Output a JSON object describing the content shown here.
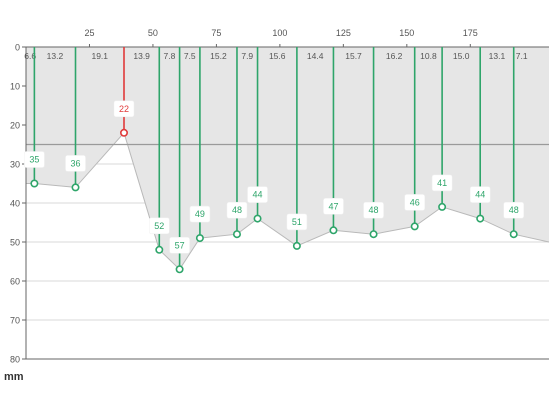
{
  "unit": "mm",
  "colors": {
    "ok": "#2ea56a",
    "alert": "#e03a3a",
    "fill": "#e6e6e6",
    "outline": "#b9b9b9",
    "grid": "#d9d9d9",
    "axis": "#666666",
    "threshold": "#9a9a9a",
    "tick_text": "#555555"
  },
  "chart_data": {
    "type": "area",
    "x_axis": {
      "ticks": [
        "25",
        "50",
        "75",
        "100",
        "125",
        "150",
        "175"
      ],
      "tick_values": [
        25,
        50,
        75,
        100,
        125,
        150,
        175
      ],
      "range": [
        0,
        206
      ]
    },
    "y_axis": {
      "label": "mm",
      "ticks": [
        "0",
        "10",
        "20",
        "30",
        "40",
        "50",
        "60",
        "70",
        "80"
      ],
      "tick_values": [
        0,
        10,
        20,
        30,
        40,
        50,
        60,
        70,
        80
      ],
      "range": [
        0,
        80
      ],
      "inverted": true
    },
    "threshold": 25,
    "profile_end": [
      206,
      50
    ],
    "points": [
      {
        "x": 3.3,
        "value": 35,
        "label": "35",
        "status": "ok"
      },
      {
        "x": 19.5,
        "value": 36,
        "label": "36",
        "status": "ok"
      },
      {
        "x": 38.6,
        "value": 22,
        "label": "22",
        "status": "alert"
      },
      {
        "x": 52.5,
        "value": 52,
        "label": "52",
        "status": "ok"
      },
      {
        "x": 60.5,
        "value": 57,
        "label": "57",
        "status": "ok"
      },
      {
        "x": 68.5,
        "value": 49,
        "label": "49",
        "status": "ok"
      },
      {
        "x": 83.1,
        "value": 48,
        "label": "48",
        "status": "ok"
      },
      {
        "x": 91.2,
        "value": 44,
        "label": "44",
        "status": "ok"
      },
      {
        "x": 106.7,
        "value": 51,
        "label": "51",
        "status": "ok"
      },
      {
        "x": 121.1,
        "value": 47,
        "label": "47",
        "status": "ok"
      },
      {
        "x": 136.9,
        "value": 48,
        "label": "48",
        "status": "ok"
      },
      {
        "x": 153.1,
        "value": 46,
        "label": "46",
        "status": "ok"
      },
      {
        "x": 163.9,
        "value": 41,
        "label": "41",
        "status": "ok"
      },
      {
        "x": 178.9,
        "value": 44,
        "label": "44",
        "status": "ok"
      },
      {
        "x": 192.1,
        "value": 48,
        "label": "48",
        "status": "ok"
      }
    ],
    "spacings": [
      "6.6",
      "13.2",
      "19.1",
      "13.9",
      "7.8",
      "7.5",
      "15.2",
      "7.9",
      "15.6",
      "14.4",
      "15.7",
      "16.2",
      "10.8",
      "15.0",
      "13.1",
      "7.1"
    ]
  }
}
